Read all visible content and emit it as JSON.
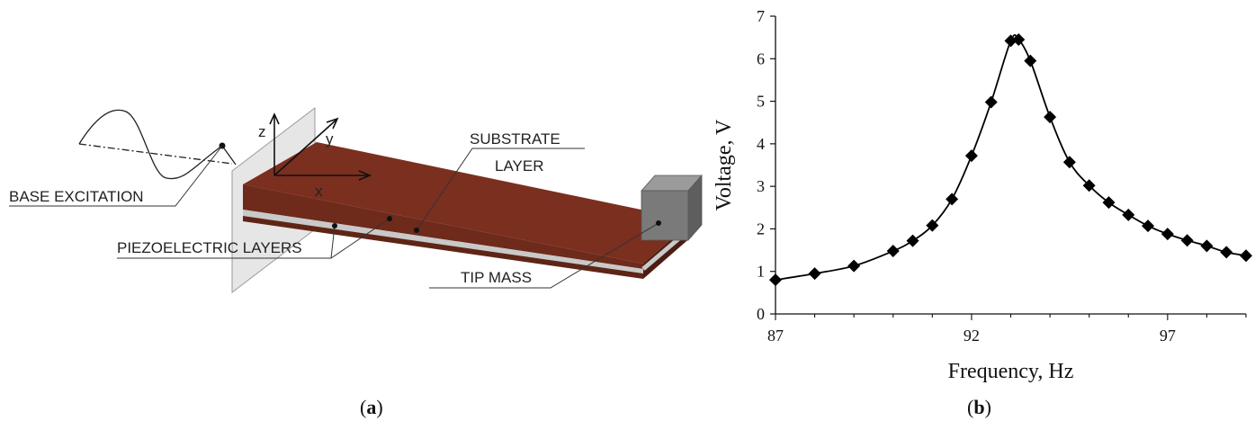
{
  "panel_a": {
    "caption_open": "(",
    "caption_letter": "a",
    "caption_close": ")",
    "labels": {
      "base_excitation": "BASE EXCITATION",
      "substrate_line1": "SUBSTRATE",
      "substrate_line2": "LAYER",
      "piezo": "PIEZOELECTRIC LAYERS",
      "tip_mass": "TIP MASS",
      "axis_z": "z",
      "axis_y": "y",
      "axis_x": "x"
    },
    "colors": {
      "beam_top": "#7a2f1f",
      "beam_side": "#5e2517",
      "substrate": "#c9c9c9",
      "tip_mass": "#7a7a7a",
      "plate": "#e6e6e6"
    }
  },
  "panel_b": {
    "caption_open": "(",
    "caption_letter": "b",
    "caption_close": ")"
  },
  "chart_data": {
    "type": "line",
    "title": "",
    "xlabel": "Frequency, Hz",
    "ylabel": "Voltage, V",
    "xlim": [
      87,
      99.0
    ],
    "ylim": [
      0,
      7
    ],
    "xticks": [
      87,
      92,
      97
    ],
    "yticks": [
      0,
      1,
      2,
      3,
      4,
      5,
      6,
      7
    ],
    "marker": "diamond",
    "color": "#000000",
    "series": [
      {
        "x": [
          87.0,
          88.0,
          89.0,
          90.0,
          90.5,
          91.0,
          91.5,
          92.0,
          92.5,
          93.0,
          93.2,
          93.5,
          94.0,
          94.5,
          95.0,
          95.5,
          96.0,
          96.5,
          97.0,
          97.5,
          98.0,
          98.5,
          99.0
        ],
        "y": [
          0.8,
          0.95,
          1.13,
          1.48,
          1.72,
          2.08,
          2.7,
          3.72,
          4.98,
          6.42,
          6.45,
          5.95,
          4.63,
          3.57,
          3.02,
          2.62,
          2.33,
          2.07,
          1.88,
          1.73,
          1.6,
          1.45,
          1.37
        ]
      }
    ]
  }
}
